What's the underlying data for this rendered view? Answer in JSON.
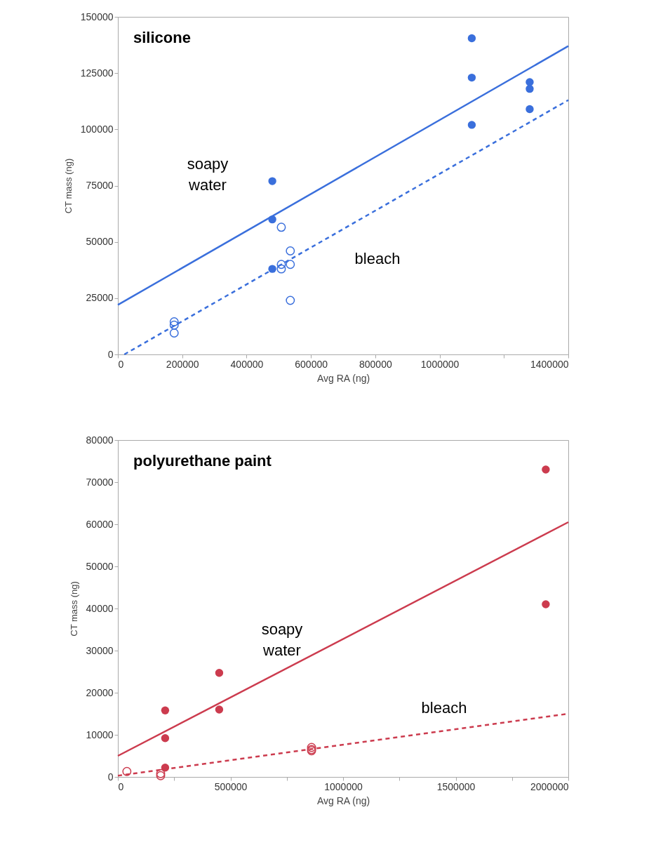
{
  "chart_data": [
    {
      "type": "scatter",
      "title": "silicone",
      "xlabel": "Avg RA (ng)",
      "ylabel": "CT mass (ng)",
      "xlim": [
        0,
        1400000
      ],
      "ylim": [
        0,
        150000
      ],
      "xticks": [
        0,
        200000,
        400000,
        600000,
        800000,
        1000000,
        {
          "value": 1200000,
          "label": null
        },
        1400000
      ],
      "yticks": [
        0,
        25000,
        50000,
        75000,
        100000,
        125000,
        150000
      ],
      "annotations": [
        "soapy water",
        "bleach"
      ],
      "series": [
        {
          "marker": "circle",
          "color": "#3a6fdc",
          "x": [
            480000,
            480000,
            480000,
            1100000,
            1100000,
            1100000,
            1280000,
            1280000,
            1280000
          ],
          "values": [
            77000,
            60000,
            38000,
            140500,
            123000,
            102000,
            121000,
            118000,
            109000
          ]
        },
        {
          "marker": "circle-open",
          "color": "#3a6fdc",
          "x": [
            175000,
            175000,
            175000,
            508000,
            508000,
            508000,
            536000,
            536000,
            536000
          ],
          "values": [
            14500,
            13000,
            9500,
            56500,
            40000,
            38000,
            46000,
            40000,
            24000
          ]
        },
        {
          "type": "line",
          "line_style": "solid",
          "color": "#3a6fdc",
          "x": [
            0,
            1400000
          ],
          "values": [
            22000,
            137000
          ]
        },
        {
          "type": "line",
          "line_style": "dashed",
          "color": "#3a6fdc",
          "x": [
            20000,
            1400000
          ],
          "values": [
            0,
            113000
          ]
        }
      ]
    },
    {
      "type": "scatter",
      "title": "polyurethane paint",
      "xlabel": "Avg RA (ng)",
      "ylabel": "CT mass (ng)",
      "xlim": [
        0,
        2000000
      ],
      "ylim": [
        0,
        80000
      ],
      "xticks": [
        0,
        {
          "value": 250000,
          "label": null
        },
        500000,
        {
          "value": 750000,
          "label": null
        },
        1000000,
        {
          "value": 1250000,
          "label": null
        },
        1500000,
        {
          "value": 1750000,
          "label": null
        },
        2000000
      ],
      "yticks": [
        0,
        10000,
        20000,
        30000,
        40000,
        50000,
        60000,
        70000,
        80000
      ],
      "annotations": [
        "soapy water",
        "bleach"
      ],
      "series": [
        {
          "marker": "circle",
          "color": "#cc3b4e",
          "x": [
            210000,
            210000,
            210000,
            450000,
            450000,
            1900000,
            1900000
          ],
          "values": [
            15800,
            9200,
            2200,
            24700,
            16000,
            73000,
            41000
          ]
        },
        {
          "marker": "circle-open",
          "color": "#cc3b4e",
          "x": [
            40000,
            190000,
            190000,
            860000,
            860000,
            860000
          ],
          "values": [
            1300,
            800,
            300,
            7000,
            6500,
            6200
          ]
        },
        {
          "type": "line",
          "line_style": "solid",
          "color": "#cc3b4e",
          "x": [
            0,
            2000000
          ],
          "values": [
            5000,
            60500
          ]
        },
        {
          "type": "line",
          "line_style": "dashed",
          "color": "#cc3b4e",
          "x": [
            0,
            2000000
          ],
          "values": [
            300,
            15000
          ]
        }
      ]
    }
  ]
}
